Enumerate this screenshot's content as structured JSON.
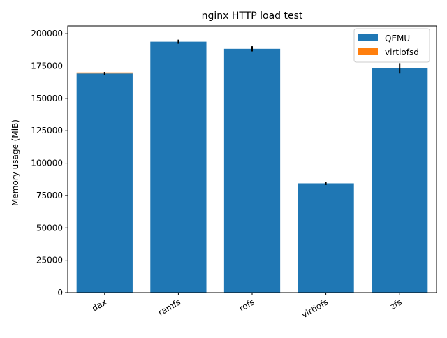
{
  "chart_data": {
    "type": "bar",
    "stacked": true,
    "title": "nginx HTTP load test",
    "xlabel": "",
    "ylabel": "Memory usage (MiB)",
    "categories": [
      "dax",
      "ramfs",
      "rofs",
      "virtiofs",
      "zfs"
    ],
    "series": [
      {
        "name": "QEMU",
        "color": "#1f77b4",
        "values": [
          169200,
          193800,
          188300,
          84400,
          173200
        ],
        "error": [
          1200,
          1600,
          2000,
          1300,
          4000
        ]
      },
      {
        "name": "virtiofsd",
        "color": "#ff7f0e",
        "values": [
          800,
          0,
          0,
          0,
          0
        ],
        "error": [
          0,
          0,
          0,
          0,
          0
        ]
      }
    ],
    "ylim": [
      0,
      206000
    ],
    "yticks": [
      0,
      25000,
      50000,
      75000,
      100000,
      125000,
      150000,
      175000,
      200000
    ],
    "ytick_labels": [
      "0",
      "25000",
      "50000",
      "75000",
      "100000",
      "125000",
      "150000",
      "175000",
      "200000"
    ],
    "grid": false,
    "legend_position": "top-right"
  }
}
